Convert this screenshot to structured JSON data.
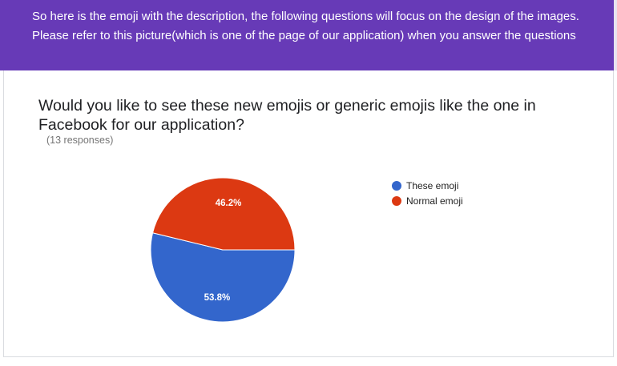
{
  "banner": {
    "text": "So here is the emoji with the description, the following questions will focus on the design of the images. Please refer to this picture(which is one of the page of our application) when you answer the questions"
  },
  "question": {
    "title": "Would you like to see these new emojis or generic emojis like the one in Facebook for our application?",
    "responses": "(13 responses)"
  },
  "colors": {
    "banner": "#673ab7",
    "series_blue": "#3366cc",
    "series_red": "#dc3912"
  },
  "chart_data": {
    "type": "pie",
    "title": "Would you like to see these new emojis or generic emojis like the one in Facebook for our application?",
    "categories": [
      "These emoji",
      "Normal emoji"
    ],
    "values": [
      53.8,
      46.2
    ],
    "labels": [
      "53.8%",
      "46.2%"
    ],
    "colors": [
      "#3366cc",
      "#dc3912"
    ],
    "legend": "right"
  }
}
